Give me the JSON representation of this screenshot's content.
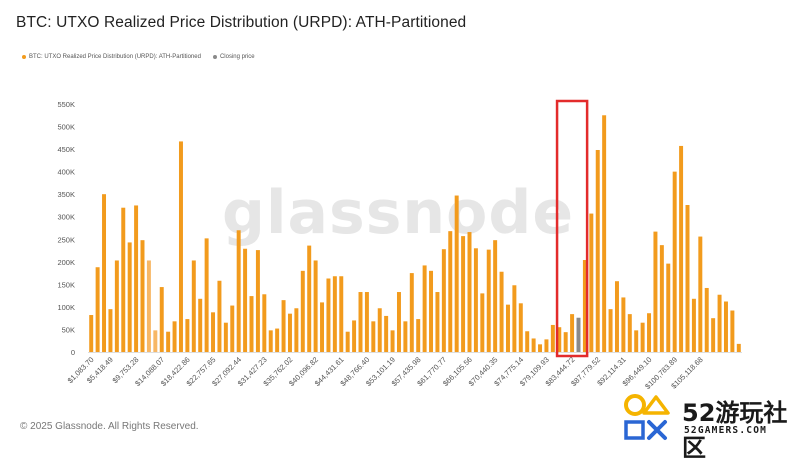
{
  "title": "BTC: UTXO Realized Price Distribution (URPD): ATH-Partitioned",
  "footer": "© 2025 Glassnode. All Rights Reserved.",
  "watermark": "glassnode",
  "site": {
    "name": "52游玩社区",
    "url": "52GAMERS.COM"
  },
  "colors": {
    "bar": "#f29b1d",
    "bar_light": "#f7b765",
    "closing": "#8a8a8a",
    "highlight": "#e32b2b"
  },
  "chart_data": {
    "type": "bar",
    "title": "BTC: UTXO Realized Price Distribution (URPD): ATH-Partitioned",
    "legend": {
      "placement": "top-left",
      "entries": [
        {
          "name": "BTC: UTXO Realized Price Distribution (URPD): ATH-Partitioned",
          "color": "#f29b1d"
        },
        {
          "name": "Closing price",
          "color": "#8a8a8a"
        }
      ]
    },
    "ylim": [
      0,
      550000
    ],
    "yticks": [
      0,
      50000,
      100000,
      150000,
      200000,
      250000,
      300000,
      350000,
      400000,
      450000,
      500000,
      550000
    ],
    "ytick_labels": [
      "0",
      "50K",
      "100K",
      "150K",
      "200K",
      "250K",
      "300K",
      "350K",
      "400K",
      "450K",
      "500K",
      "550K"
    ],
    "x_tick_labels": [
      {
        "label": "$1,083.70",
        "bar": 0
      },
      {
        "label": "$5,418.49",
        "bar": 3
      },
      {
        "label": "$9,753.28",
        "bar": 7
      },
      {
        "label": "$14,088.07",
        "bar": 11
      },
      {
        "label": "$18,422.86",
        "bar": 15
      },
      {
        "label": "$22,757.65",
        "bar": 19
      },
      {
        "label": "$27,092.44",
        "bar": 23
      },
      {
        "label": "$31,427.23",
        "bar": 27
      },
      {
        "label": "$35,762.02",
        "bar": 31
      },
      {
        "label": "$40,096.82",
        "bar": 35
      },
      {
        "label": "$44,431.61",
        "bar": 39
      },
      {
        "label": "$48,766.40",
        "bar": 43
      },
      {
        "label": "$53,101.19",
        "bar": 47
      },
      {
        "label": "$57,435.98",
        "bar": 51
      },
      {
        "label": "$61,770.77",
        "bar": 55
      },
      {
        "label": "$66,105.56",
        "bar": 59
      },
      {
        "label": "$70,440.35",
        "bar": 63
      },
      {
        "label": "$74,775.14",
        "bar": 67
      },
      {
        "label": "$79,109.93",
        "bar": 71
      },
      {
        "label": "$83,444.72",
        "bar": 75
      },
      {
        "label": "$87,779.52",
        "bar": 79
      },
      {
        "label": "$92,114.31",
        "bar": 83
      },
      {
        "label": "$96,449.10",
        "bar": 87
      },
      {
        "label": "$100,783.89",
        "bar": 91
      },
      {
        "label": "$105,118.68",
        "bar": 95
      }
    ],
    "closing_bar_index": 76,
    "light_bar_indices": [
      9,
      10
    ],
    "highlight_bar_range": [
      73,
      77
    ],
    "series": [
      {
        "name": "BTC: UTXO Realized Price Distribution (URPD): ATH-Partitioned",
        "values": [
          82000,
          188000,
          350000,
          95000,
          203000,
          320000,
          243000,
          325000,
          248000,
          203000,
          48000,
          144000,
          45000,
          68000,
          467000,
          73000,
          203000,
          118000,
          252000,
          88000,
          158000,
          65000,
          103000,
          270000,
          229000,
          124000,
          226000,
          128000,
          48000,
          52000,
          115000,
          85000,
          97000,
          180000,
          236000,
          203000,
          110000,
          163000,
          168000,
          168000,
          45000,
          70000,
          133000,
          133000,
          68000,
          97000,
          80000,
          48000,
          133000,
          68000,
          175000,
          73000,
          192000,
          180000,
          133000,
          228000,
          268000,
          347000,
          257000,
          266000,
          230000,
          130000,
          227000,
          248000,
          178000,
          105000,
          148000,
          108000,
          46000,
          30000,
          17000,
          28000,
          60000,
          55000,
          44000,
          84000,
          76000,
          204000,
          307000,
          448000,
          525000,
          95000,
          157000,
          121000,
          84000,
          48000,
          65000,
          86000,
          267000,
          237000,
          196000,
          400000,
          457000,
          326000,
          118000,
          256000,
          142000,
          75000,
          127000,
          112000,
          92000,
          18000
        ]
      }
    ],
    "grid": false
  }
}
